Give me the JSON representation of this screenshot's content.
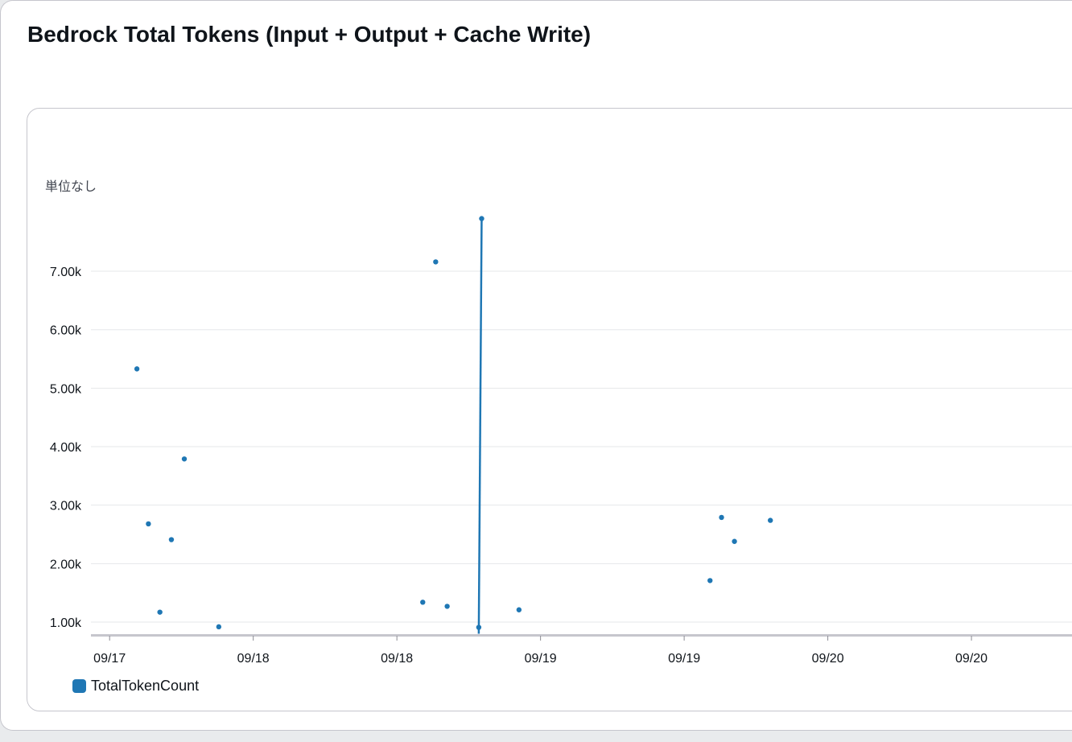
{
  "widget": {
    "title": "Bedrock Total Tokens (Input + Output + Cache Write)"
  },
  "chart_data": {
    "type": "scatter",
    "y_unit_label": "単位なし",
    "y_ticks": [
      1000,
      2000,
      3000,
      4000,
      5000,
      6000,
      7000
    ],
    "y_tick_labels": [
      "1.00k",
      "2.00k",
      "3.00k",
      "4.00k",
      "5.00k",
      "6.00k",
      "7.00k"
    ],
    "ylim": [
      780,
      7950
    ],
    "x_ticks": [
      0,
      1,
      2,
      3,
      4,
      5,
      6
    ],
    "x_tick_labels": [
      "09/17",
      "09/18",
      "09/18",
      "09/19",
      "09/19",
      "09/20",
      "09/20"
    ],
    "xlim": [
      -0.13,
      6.7
    ],
    "grid": true,
    "legend_position": "bottom-left",
    "color": "#1f77b4",
    "series": [
      {
        "name": "TotalTokenCount",
        "points": [
          {
            "x": 0.19,
            "y": 5330
          },
          {
            "x": 0.27,
            "y": 2680
          },
          {
            "x": 0.35,
            "y": 1170
          },
          {
            "x": 0.43,
            "y": 2410
          },
          {
            "x": 0.52,
            "y": 3790
          },
          {
            "x": 0.76,
            "y": 920
          },
          {
            "x": 2.18,
            "y": 1340
          },
          {
            "x": 2.27,
            "y": 7160
          },
          {
            "x": 2.35,
            "y": 1270
          },
          {
            "x": 2.57,
            "y": 910
          },
          {
            "x": 2.59,
            "y": 7900
          },
          {
            "x": 2.85,
            "y": 1210
          },
          {
            "x": 4.18,
            "y": 1710
          },
          {
            "x": 4.26,
            "y": 2790
          },
          {
            "x": 4.35,
            "y": 2380
          },
          {
            "x": 4.6,
            "y": 2740
          }
        ],
        "line_segment": [
          {
            "x": 2.57,
            "y": 800
          },
          {
            "x": 2.59,
            "y": 7900
          }
        ]
      }
    ]
  }
}
